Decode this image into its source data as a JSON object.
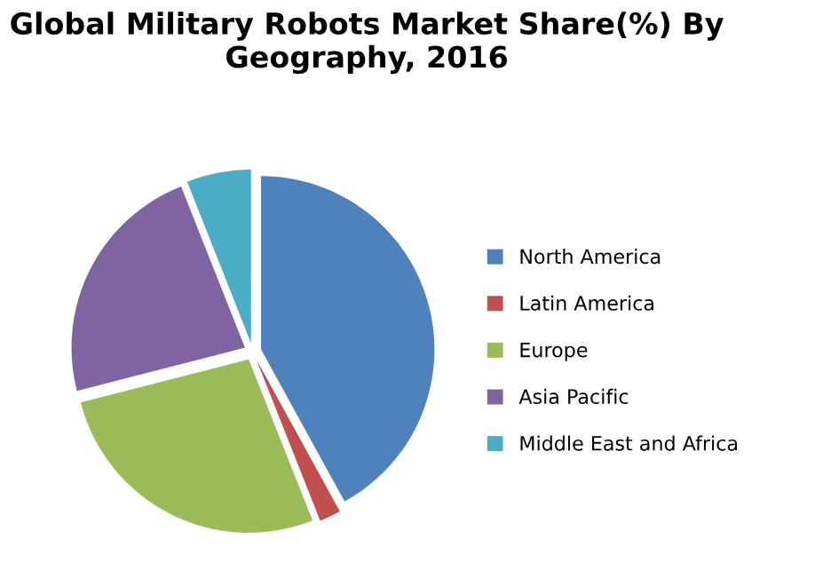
{
  "chart_data": {
    "type": "pie",
    "title": "Global Military Robots Market Share(%) By Geography, 2016",
    "categories": [
      "North America",
      "Latin America",
      "Europe",
      "Asia Pacific",
      "Middle East and Africa"
    ],
    "values": [
      42,
      2,
      27,
      23,
      6
    ],
    "colors": [
      "#4f81bd",
      "#c0504d",
      "#9bbb59",
      "#8064a2",
      "#4bacc6"
    ],
    "legend": "right"
  }
}
